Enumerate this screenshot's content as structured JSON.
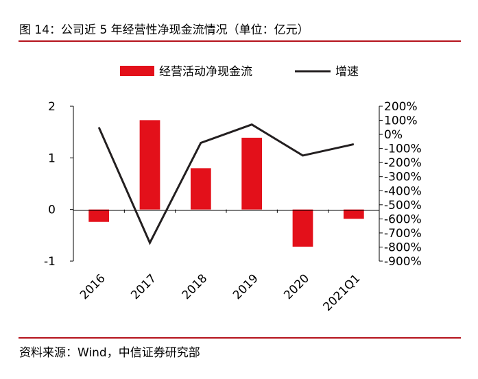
{
  "header": {
    "title": "图 14：公司近 5 年经营性净现金流情况（单位：亿元）"
  },
  "footer": {
    "source": "资料来源：Wind，中信证券研究部"
  },
  "colors": {
    "accent": "#b5121b",
    "bar": "#e3101a",
    "line": "#231f20"
  },
  "chart_data": {
    "type": "bar",
    "categories": [
      "2016",
      "2017",
      "2018",
      "2019",
      "2020",
      "2021Q1"
    ],
    "series": [
      {
        "name": "经营活动净现金流",
        "type": "bar",
        "axis": "left",
        "values": [
          -0.24,
          1.73,
          0.8,
          1.39,
          -0.72,
          -0.18
        ]
      },
      {
        "name": "增速",
        "type": "line",
        "axis": "right",
        "unit": "%",
        "values": [
          50,
          -770,
          -60,
          70,
          -150,
          -70
        ]
      }
    ],
    "y_left": {
      "range": [
        -1,
        2
      ],
      "ticks": [
        "2",
        "1",
        "0",
        "-1"
      ]
    },
    "y_right": {
      "range": [
        -900,
        200
      ],
      "ticks": [
        "200%",
        "100%",
        "0%",
        "-100%",
        "-200%",
        "-300%",
        "-400%",
        "-500%",
        "-600%",
        "-700%",
        "-800%",
        "-900%"
      ]
    },
    "legend_position": "top-center",
    "grid": false
  }
}
